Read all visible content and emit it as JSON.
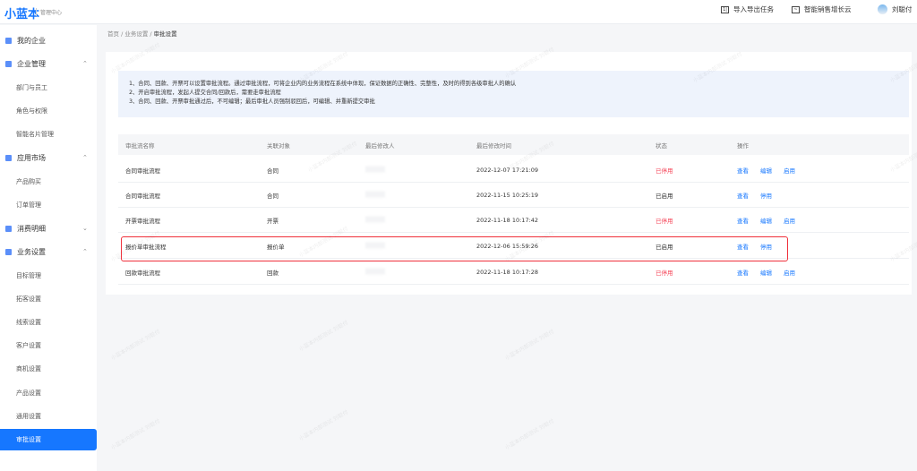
{
  "header": {
    "logo": "小蓝本",
    "logo_sub": "管理中心",
    "import_export": "导入导出任务",
    "growth_cloud": "智能销售增长云",
    "user": "刘聪付"
  },
  "sidebar": {
    "items": [
      {
        "label": "我的企业",
        "level": "top"
      },
      {
        "label": "企业管理",
        "level": "top",
        "chevron": "up"
      },
      {
        "label": "部门与员工",
        "level": "sub"
      },
      {
        "label": "角色与权限",
        "level": "sub"
      },
      {
        "label": "智能名片管理",
        "level": "sub"
      },
      {
        "label": "应用市场",
        "level": "top",
        "chevron": "up"
      },
      {
        "label": "产品购买",
        "level": "sub"
      },
      {
        "label": "订单管理",
        "level": "sub"
      },
      {
        "label": "消费明细",
        "level": "top",
        "chevron": "down"
      },
      {
        "label": "业务设置",
        "level": "top",
        "chevron": "up"
      },
      {
        "label": "目标管理",
        "level": "sub"
      },
      {
        "label": "拓客设置",
        "level": "sub"
      },
      {
        "label": "线索设置",
        "level": "sub"
      },
      {
        "label": "客户设置",
        "level": "sub"
      },
      {
        "label": "商机设置",
        "level": "sub"
      },
      {
        "label": "产品设置",
        "level": "sub"
      },
      {
        "label": "通用设置",
        "level": "sub"
      },
      {
        "label": "审批设置",
        "level": "sub",
        "active": true
      }
    ]
  },
  "breadcrumb": [
    "首页",
    "业务设置",
    "审批设置"
  ],
  "info": [
    "1、合同、回款、开票可以设置审批流程。通过审批流程，可将企业内的业务流程在系统中体现，保证数据的正确性、完整性，及时的得到各级审批人的确认",
    "2、开启审批流程，发起人提交合同/回款后，需要走审批流程",
    "3、合同、回款、开票审批通过后，不可编辑；最后审批人员强制驳回后，可编辑、并重新提交审批"
  ],
  "table": {
    "columns": [
      "审批流名称",
      "关联对象",
      "最后修改人",
      "最后修改时间",
      "状态",
      "操作"
    ],
    "rows": [
      {
        "name": "合同审批流程",
        "object": "合同",
        "time": "2022-12-07 17:21:09",
        "status": "已停用",
        "actions": [
          "查看",
          "编辑",
          "启用"
        ]
      },
      {
        "name": "合同审批流程",
        "object": "合同",
        "time": "2022-11-15 10:25:19",
        "status": "已启用",
        "actions": [
          "查看",
          "停用"
        ]
      },
      {
        "name": "开票审批流程",
        "object": "开票",
        "time": "2022-11-18 10:17:42",
        "status": "已停用",
        "actions": [
          "查看",
          "编辑",
          "启用"
        ]
      },
      {
        "name": "报价单审批流程",
        "object": "报价单",
        "time": "2022-12-06 15:59:26",
        "status": "已启用",
        "actions": [
          "查看",
          "停用"
        ],
        "highlighted": true
      },
      {
        "name": "回款审批流程",
        "object": "回款",
        "time": "2022-11-18 10:17:28",
        "status": "已停用",
        "actions": [
          "查看",
          "编辑",
          "启用"
        ]
      }
    ]
  },
  "colors": {
    "accent": "#1677ff",
    "disabled_status": "#f5475a",
    "highlight_border": "#f0303b"
  },
  "watermark": "小蓝本内部测试 刘聪付"
}
